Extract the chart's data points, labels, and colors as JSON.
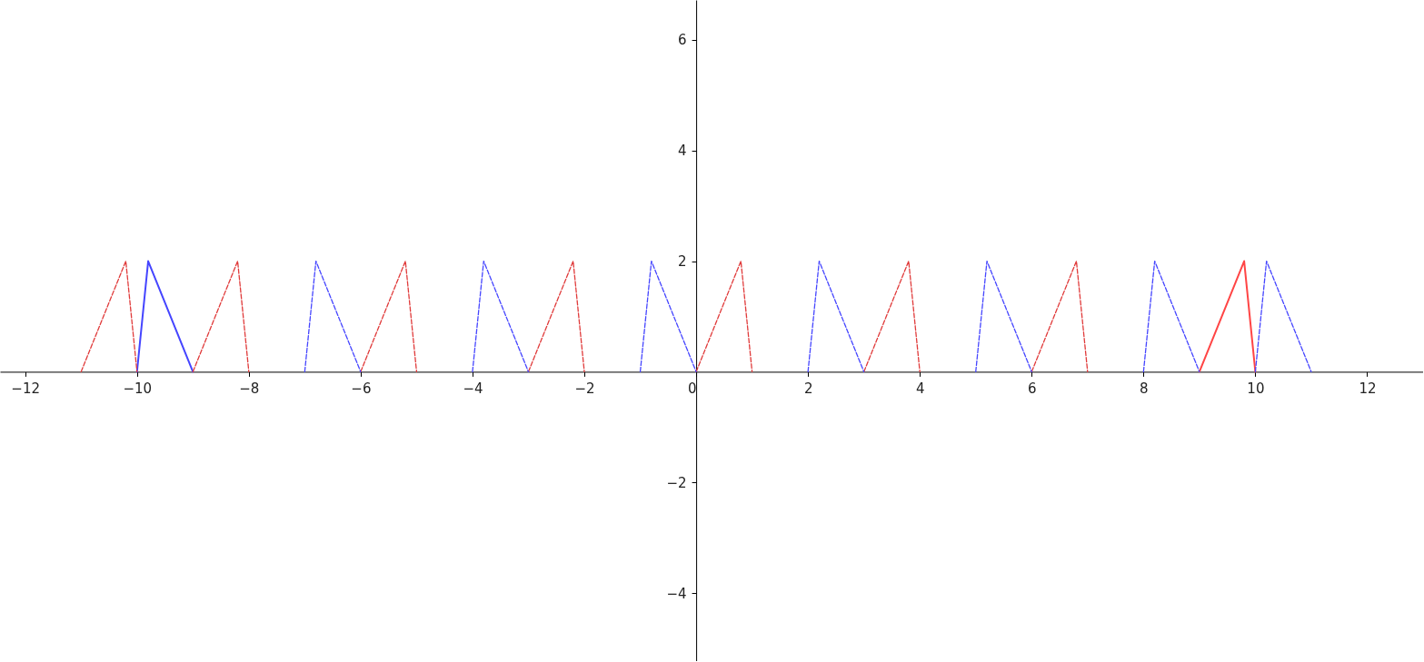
{
  "chart_data": {
    "type": "line",
    "xlim": [
      -12.45,
      13
    ],
    "ylim": [
      -5.23,
      6.72
    ],
    "xticks": [
      -12,
      -10,
      -8,
      -6,
      -4,
      -2,
      0,
      2,
      4,
      6,
      8,
      10,
      12
    ],
    "yticks": [
      -4,
      -2,
      2,
      4,
      6
    ],
    "series": [
      {
        "color": "#4545ff",
        "line_style": "solid",
        "x": [
          -10,
          -9.8,
          -9
        ],
        "values": [
          0,
          2,
          0
        ]
      },
      {
        "color": "#e03a3a",
        "line_style": "dashed",
        "x": [
          -11,
          -10.2,
          -10
        ],
        "values": [
          0,
          2,
          0
        ]
      },
      {
        "color": "#e03a3a",
        "line_style": "dashed",
        "x": [
          -9,
          -8.2,
          -8
        ],
        "values": [
          0,
          2,
          0
        ]
      },
      {
        "color": "#e03a3a",
        "line_style": "dashed",
        "x": [
          -6,
          -5.2,
          -5
        ],
        "values": [
          0,
          2,
          0
        ]
      },
      {
        "color": "#e03a3a",
        "line_style": "dashed",
        "x": [
          -3,
          -2.2,
          -2
        ],
        "values": [
          0,
          2,
          0
        ]
      },
      {
        "color": "#e03a3a",
        "line_style": "dashed",
        "x": [
          0,
          0.8,
          1
        ],
        "values": [
          0,
          2,
          0
        ]
      },
      {
        "color": "#e03a3a",
        "line_style": "dashed",
        "x": [
          3,
          3.8,
          4
        ],
        "values": [
          0,
          2,
          0
        ]
      },
      {
        "color": "#e03a3a",
        "line_style": "dashed",
        "x": [
          6,
          6.8,
          7
        ],
        "values": [
          0,
          2,
          0
        ]
      },
      {
        "color": "#ff4545",
        "line_style": "solid",
        "x": [
          9,
          9.8,
          10
        ],
        "values": [
          0,
          2,
          0
        ]
      },
      {
        "color": "#4545ff",
        "line_style": "dashed",
        "x": [
          -7,
          -6.8,
          -6
        ],
        "values": [
          0,
          2,
          0
        ]
      },
      {
        "color": "#4545ff",
        "line_style": "dashed",
        "x": [
          -4,
          -3.8,
          -3
        ],
        "values": [
          0,
          2,
          0
        ]
      },
      {
        "color": "#4545ff",
        "line_style": "dashed",
        "x": [
          -1,
          -0.8,
          0
        ],
        "values": [
          0,
          2,
          0
        ]
      },
      {
        "color": "#4545ff",
        "line_style": "dashed",
        "x": [
          2,
          2.2,
          3
        ],
        "values": [
          0,
          2,
          0
        ]
      },
      {
        "color": "#4545ff",
        "line_style": "dashed",
        "x": [
          5,
          5.2,
          6
        ],
        "values": [
          0,
          2,
          0
        ]
      },
      {
        "color": "#4545ff",
        "line_style": "dashed",
        "x": [
          8,
          8.2,
          9
        ],
        "values": [
          0,
          2,
          0
        ]
      },
      {
        "color": "#4545ff",
        "line_style": "dashed",
        "x": [
          10,
          10.2,
          11
        ],
        "values": [
          0,
          2,
          0
        ]
      }
    ]
  }
}
